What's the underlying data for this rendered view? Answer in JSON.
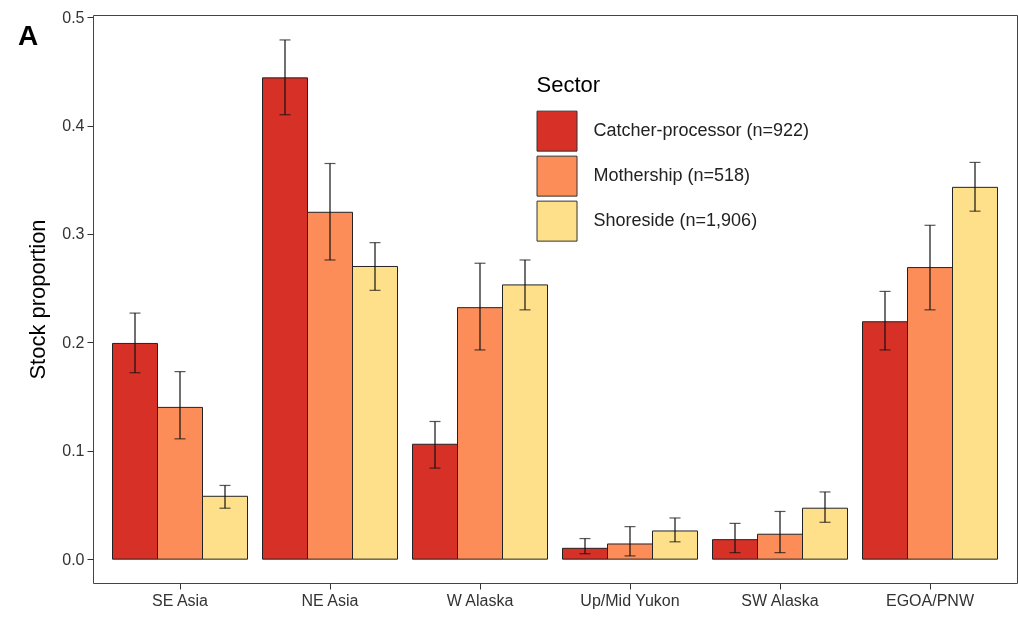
{
  "chart_data": {
    "type": "bar",
    "ylabel": "Stock proportion",
    "legend_title": "Sector",
    "legend": "top",
    "grid": false,
    "annotations": [
      "A"
    ],
    "categories": [
      "SE Asia",
      "NE Asia",
      "W Alaska",
      "Up/Mid Yukon",
      "SW Alaska",
      "EGOA/PNW"
    ],
    "ylim": [
      -0.022,
      0.502
    ],
    "yticks": [
      {
        "value": 0,
        "label": "0.0"
      },
      0.1,
      0.2,
      0.3,
      0.4,
      0.5
    ],
    "series": [
      {
        "name": "Catcher-processor (n=922)",
        "color": "#d73027",
        "values": [
          0.199,
          0.444,
          0.106,
          0.01,
          0.018,
          0.219
        ],
        "errors": [
          [
            0.172,
            0.227
          ],
          [
            0.41,
            0.479
          ],
          [
            0.084,
            0.127
          ],
          [
            0.005,
            0.019
          ],
          [
            0.006,
            0.033
          ],
          [
            0.193,
            0.247
          ]
        ]
      },
      {
        "name": "Mothership (n=518)",
        "color": "#fc8d59",
        "values": [
          0.14,
          0.32,
          0.232,
          0.014,
          0.023,
          0.269
        ],
        "errors": [
          [
            0.111,
            0.173
          ],
          [
            0.276,
            0.365
          ],
          [
            0.193,
            0.273
          ],
          [
            0.003,
            0.03
          ],
          [
            0.006,
            0.044
          ],
          [
            0.23,
            0.308
          ]
        ]
      },
      {
        "name": "Shoreside (n=1,906)",
        "color": "#fee08b",
        "values": [
          0.058,
          0.27,
          0.253,
          0.026,
          0.047,
          0.343
        ],
        "errors": [
          [
            0.047,
            0.068
          ],
          [
            0.248,
            0.292
          ],
          [
            0.23,
            0.276
          ],
          [
            0.016,
            0.038
          ],
          [
            0.034,
            0.062
          ],
          [
            0.321,
            0.366
          ]
        ]
      }
    ]
  }
}
